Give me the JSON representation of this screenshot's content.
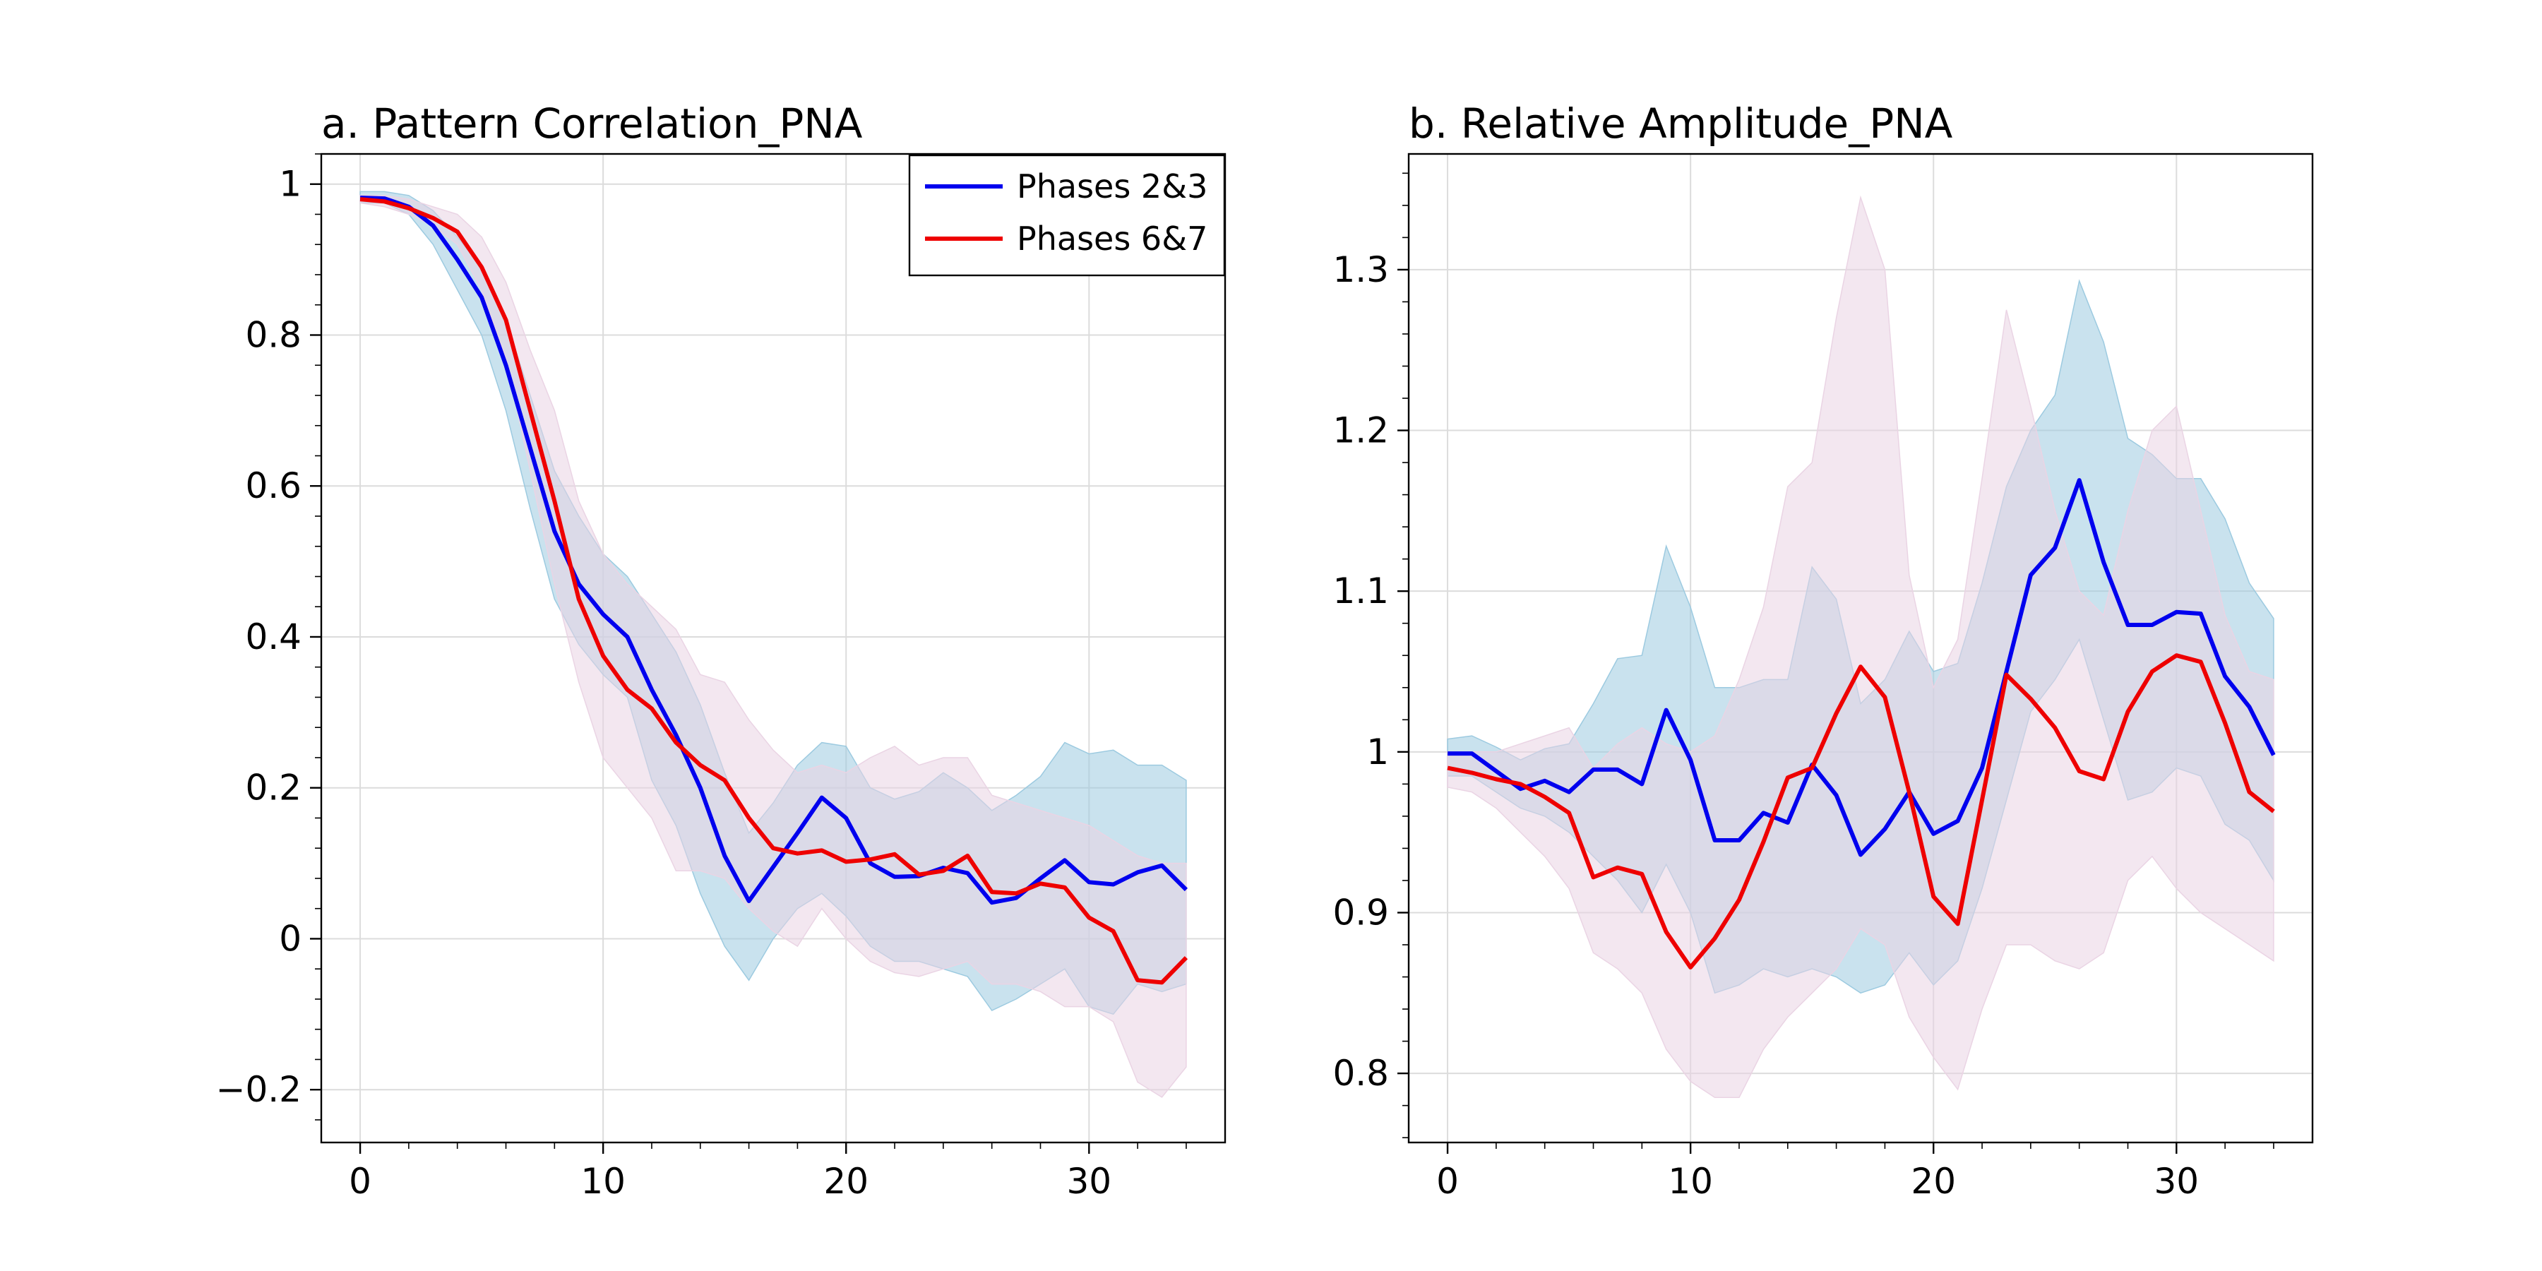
{
  "chart_data": [
    {
      "type": "line",
      "title": "a. Pattern Correlation_PNA",
      "xlabel": "",
      "ylabel": "",
      "xlim": [
        -1.6,
        35.6
      ],
      "ylim": [
        -0.27,
        1.04
      ],
      "xticks": [
        0,
        10,
        20,
        30
      ],
      "xtick_labels": [
        "0",
        "10",
        "20",
        "30"
      ],
      "yticks": [
        -0.2,
        0,
        0.2,
        0.4,
        0.6,
        0.8,
        1
      ],
      "ytick_labels": [
        "−0.2",
        "0",
        "0.2",
        "0.4",
        "0.6",
        "0.8",
        "1"
      ],
      "grid": true,
      "legend_position": "top-right",
      "x": [
        0,
        1,
        2,
        3,
        4,
        5,
        6,
        7,
        8,
        9,
        10,
        11,
        12,
        13,
        14,
        15,
        16,
        17,
        18,
        19,
        20,
        21,
        22,
        23,
        24,
        25,
        26,
        27,
        28,
        29,
        30,
        31,
        32,
        33,
        34
      ],
      "series": [
        {
          "name": "Phases 2&3",
          "color": "#0000ee",
          "band_color": "#9ccae0",
          "values": [
            0.982,
            0.981,
            0.97,
            0.945,
            0.9,
            0.85,
            0.76,
            0.65,
            0.54,
            0.47,
            0.43,
            0.4,
            0.33,
            0.27,
            0.2,
            0.11,
            0.05,
            0.095,
            0.14,
            0.187,
            0.16,
            0.1,
            0.082,
            0.083,
            0.094,
            0.087,
            0.048,
            0.054,
            0.08,
            0.104,
            0.075,
            0.072,
            0.088,
            0.097,
            0.065
          ],
          "lower": [
            0.975,
            0.975,
            0.96,
            0.92,
            0.86,
            0.8,
            0.7,
            0.57,
            0.45,
            0.39,
            0.35,
            0.32,
            0.21,
            0.15,
            0.06,
            -0.01,
            -0.055,
            0.0,
            0.04,
            0.06,
            0.03,
            -0.01,
            -0.03,
            -0.03,
            -0.04,
            -0.05,
            -0.095,
            -0.08,
            -0.06,
            -0.04,
            -0.09,
            -0.1,
            -0.06,
            -0.07,
            -0.06
          ],
          "upper": [
            0.99,
            0.99,
            0.985,
            0.965,
            0.93,
            0.89,
            0.82,
            0.72,
            0.62,
            0.56,
            0.51,
            0.48,
            0.43,
            0.38,
            0.31,
            0.22,
            0.14,
            0.18,
            0.23,
            0.26,
            0.255,
            0.2,
            0.185,
            0.195,
            0.22,
            0.2,
            0.17,
            0.19,
            0.215,
            0.26,
            0.245,
            0.25,
            0.23,
            0.23,
            0.21
          ]
        },
        {
          "name": "Phases 6&7",
          "color": "#ee0000",
          "band_color": "#ead4e4",
          "values": [
            0.98,
            0.977,
            0.968,
            0.955,
            0.937,
            0.89,
            0.82,
            0.7,
            0.58,
            0.45,
            0.375,
            0.33,
            0.305,
            0.26,
            0.23,
            0.21,
            0.16,
            0.12,
            0.113,
            0.117,
            0.102,
            0.105,
            0.112,
            0.085,
            0.09,
            0.11,
            0.062,
            0.06,
            0.073,
            0.068,
            0.028,
            0.01,
            -0.055,
            -0.058,
            -0.025
          ],
          "lower": [
            0.975,
            0.97,
            0.96,
            0.945,
            0.92,
            0.86,
            0.77,
            0.62,
            0.47,
            0.34,
            0.24,
            0.2,
            0.16,
            0.09,
            0.09,
            0.08,
            0.04,
            0.01,
            -0.01,
            0.04,
            0.0,
            -0.03,
            -0.045,
            -0.05,
            -0.04,
            -0.03,
            -0.06,
            -0.06,
            -0.07,
            -0.09,
            -0.09,
            -0.11,
            -0.19,
            -0.21,
            -0.17
          ],
          "upper": [
            0.985,
            0.985,
            0.98,
            0.97,
            0.96,
            0.93,
            0.87,
            0.78,
            0.7,
            0.58,
            0.51,
            0.47,
            0.44,
            0.41,
            0.35,
            0.34,
            0.29,
            0.25,
            0.22,
            0.23,
            0.22,
            0.24,
            0.255,
            0.23,
            0.24,
            0.24,
            0.19,
            0.18,
            0.17,
            0.16,
            0.15,
            0.13,
            0.11,
            0.1,
            0.1
          ]
        }
      ]
    },
    {
      "type": "line",
      "title": "b. Relative Amplitude_PNA",
      "xlabel": "",
      "ylabel": "",
      "xlim": [
        -1.6,
        35.6
      ],
      "ylim": [
        0.757,
        1.372
      ],
      "xticks": [
        0,
        10,
        20,
        30
      ],
      "xtick_labels": [
        "0",
        "10",
        "20",
        "30"
      ],
      "yticks": [
        0.8,
        0.9,
        1,
        1.1,
        1.2,
        1.3
      ],
      "ytick_labels": [
        "0.8",
        "0.9",
        "1",
        "1.1",
        "1.2",
        "1.3"
      ],
      "grid": true,
      "legend_position": "none",
      "x": [
        0,
        1,
        2,
        3,
        4,
        5,
        6,
        7,
        8,
        9,
        10,
        11,
        12,
        13,
        14,
        15,
        16,
        17,
        18,
        19,
        20,
        21,
        22,
        23,
        24,
        25,
        26,
        27,
        28,
        29,
        30,
        31,
        32,
        33,
        34
      ],
      "series": [
        {
          "name": "Phases 2&3",
          "color": "#0000ee",
          "band_color": "#9ccae0",
          "values": [
            0.999,
            0.999,
            0.988,
            0.977,
            0.982,
            0.975,
            0.989,
            0.989,
            0.98,
            1.026,
            0.995,
            0.945,
            0.945,
            0.962,
            0.956,
            0.992,
            0.973,
            0.936,
            0.952,
            0.975,
            0.949,
            0.957,
            0.99,
            1.05,
            1.11,
            1.127,
            1.169,
            1.118,
            1.079,
            1.079,
            1.087,
            1.086,
            1.047,
            1.028,
            0.998
          ],
          "lower": [
            0.985,
            0.985,
            0.975,
            0.965,
            0.96,
            0.95,
            0.935,
            0.92,
            0.9,
            0.93,
            0.9,
            0.85,
            0.855,
            0.865,
            0.86,
            0.865,
            0.86,
            0.85,
            0.855,
            0.875,
            0.855,
            0.87,
            0.915,
            0.97,
            1.025,
            1.045,
            1.07,
            1.02,
            0.97,
            0.975,
            0.99,
            0.985,
            0.955,
            0.945,
            0.92
          ],
          "upper": [
            1.008,
            1.01,
            1.003,
            0.995,
            1.002,
            1.005,
            1.03,
            1.058,
            1.06,
            1.128,
            1.09,
            1.04,
            1.04,
            1.045,
            1.045,
            1.115,
            1.095,
            1.03,
            1.045,
            1.075,
            1.05,
            1.055,
            1.105,
            1.165,
            1.2,
            1.222,
            1.293,
            1.255,
            1.195,
            1.185,
            1.17,
            1.17,
            1.145,
            1.105,
            1.083
          ]
        },
        {
          "name": "Phases 6&7",
          "color": "#ee0000",
          "band_color": "#ead4e4",
          "values": [
            0.99,
            0.987,
            0.983,
            0.98,
            0.972,
            0.962,
            0.922,
            0.928,
            0.924,
            0.888,
            0.866,
            0.884,
            0.908,
            0.944,
            0.984,
            0.99,
            1.024,
            1.053,
            1.034,
            0.975,
            0.91,
            0.893,
            0.97,
            1.048,
            1.033,
            1.015,
            0.988,
            0.983,
            1.025,
            1.05,
            1.06,
            1.056,
            1.018,
            0.975,
            0.963
          ],
          "lower": [
            0.978,
            0.975,
            0.965,
            0.95,
            0.935,
            0.915,
            0.875,
            0.865,
            0.85,
            0.815,
            0.795,
            0.785,
            0.785,
            0.815,
            0.835,
            0.85,
            0.865,
            0.89,
            0.88,
            0.835,
            0.81,
            0.79,
            0.84,
            0.88,
            0.88,
            0.87,
            0.865,
            0.875,
            0.92,
            0.935,
            0.915,
            0.9,
            0.89,
            0.88,
            0.87
          ],
          "upper": [
            1.0,
            1.0,
            1.0,
            1.005,
            1.01,
            1.015,
            0.99,
            1.005,
            1.015,
            1.005,
            1.0,
            1.01,
            1.045,
            1.09,
            1.165,
            1.18,
            1.27,
            1.345,
            1.3,
            1.11,
            1.04,
            1.07,
            1.17,
            1.275,
            1.215,
            1.15,
            1.1,
            1.085,
            1.15,
            1.2,
            1.215,
            1.15,
            1.085,
            1.05,
            1.045
          ]
        }
      ]
    }
  ]
}
